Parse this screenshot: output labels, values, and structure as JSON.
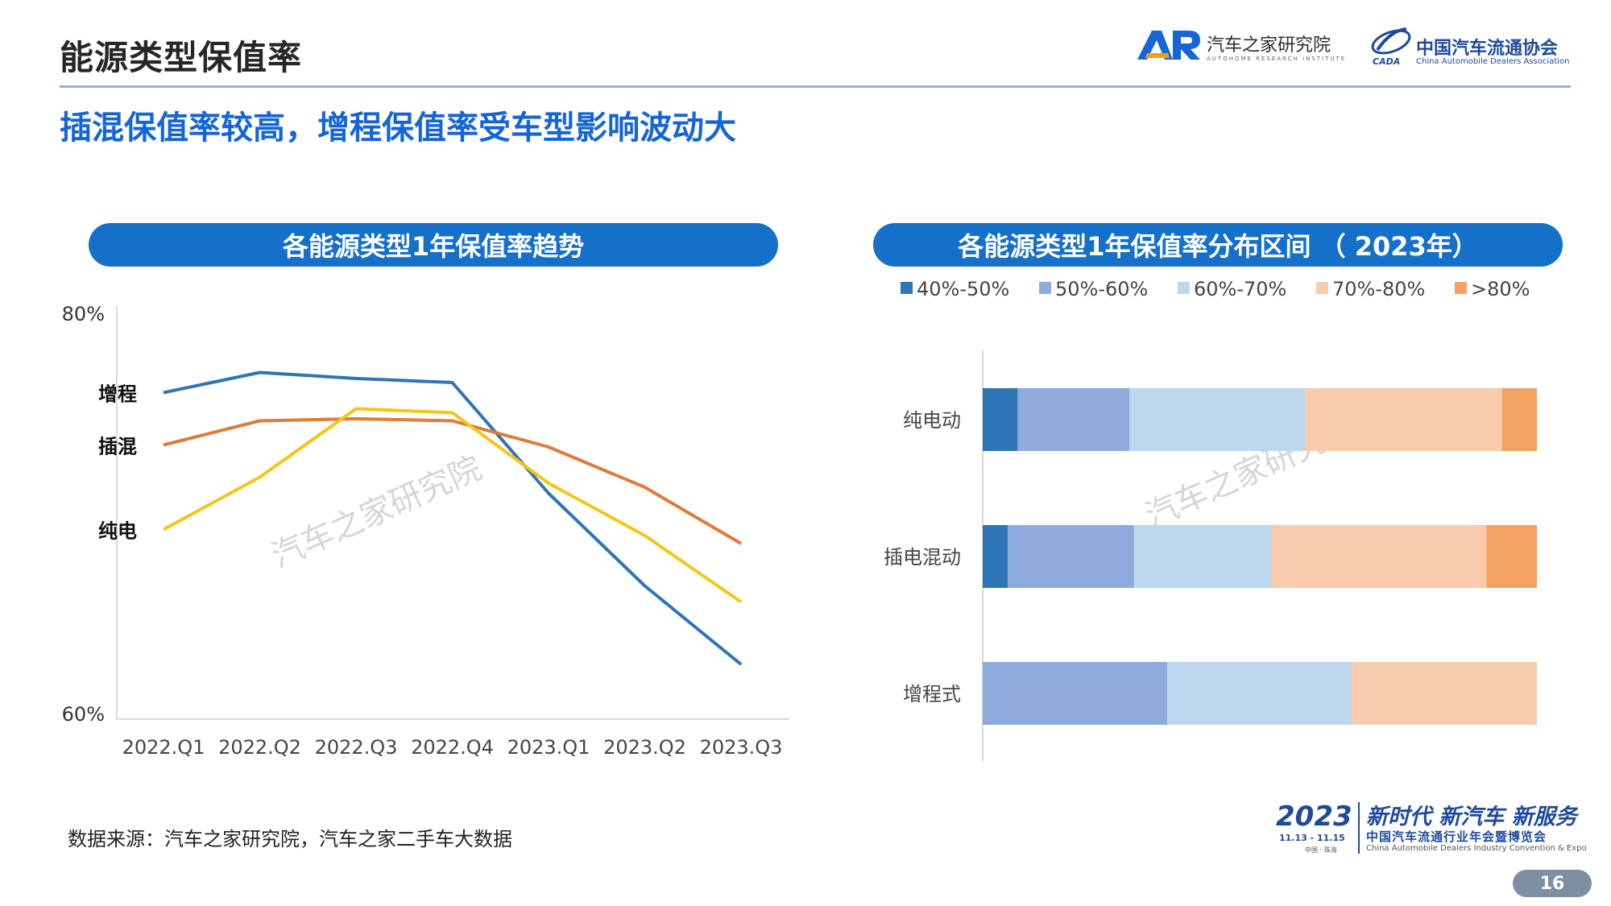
{
  "header": {
    "title": "能源类型保值率",
    "logo_ar_text": "汽车之家研究院",
    "logo_ar_en": "AUTOHOME RESEARCH INSTITUTE",
    "logo_cada_text": "中国汽车流通协会",
    "logo_cada_en": "China Automobile Dealers Association",
    "logo_cada_abbr": "CADA"
  },
  "subtitle": "插混保值率较高，增程保值率受车型影响波动大",
  "watermark": "汽车之家研究院",
  "source": "数据来源：汽车之家研究院，汽车之家二手车大数据",
  "footer": {
    "year": "2023",
    "dates": "11.13 - 11.15",
    "location": "中国 · 珠海",
    "slogan": "新时代 新汽车 新服务",
    "event_cn": "中国汽车流通行业年会暨博览会",
    "event_en": "China Automobile Dealers Industry Convention & Expo",
    "page_number": "16"
  },
  "colors": {
    "accent": "#1570c9",
    "title_blue": "#1565d8",
    "series_range_ext": "#2e75b6",
    "series_phev": "#e07b39",
    "series_bev": "#f5c518",
    "dist": [
      "#2e75b6",
      "#8faadc",
      "#bdd7ee",
      "#f8cbad",
      "#f4a261"
    ]
  },
  "chart_data": [
    {
      "type": "line",
      "title": "各能源类型1年保值率趋势",
      "categories": [
        "2022.Q1",
        "2022.Q2",
        "2022.Q3",
        "2022.Q4",
        "2023.Q1",
        "2023.Q2",
        "2023.Q3"
      ],
      "ylim": [
        60,
        80
      ],
      "ytick_labels": [
        "80%",
        "60%"
      ],
      "grid": false,
      "series": [
        {
          "name": "增程",
          "values": [
            75.9,
            76.9,
            76.6,
            76.4,
            70.9,
            66.3,
            62.4
          ]
        },
        {
          "name": "插混",
          "values": [
            73.3,
            74.5,
            74.6,
            74.5,
            73.2,
            71.2,
            68.4
          ]
        },
        {
          "name": "纯电",
          "values": [
            69.1,
            71.7,
            75.1,
            74.9,
            71.4,
            68.8,
            65.5
          ]
        }
      ]
    },
    {
      "type": "bar",
      "orientation": "horizontal",
      "stacked": true,
      "title": "各能源类型1年保值率分布区间 （ 2023年）",
      "categories": [
        "纯电动",
        "插电混动",
        "增程式"
      ],
      "legend_position": "top",
      "series": [
        {
          "name": "40%-50%",
          "values": [
            6.3,
            4.5,
            0
          ]
        },
        {
          "name": "50%-60%",
          "values": [
            20.2,
            22.8,
            33.3
          ]
        },
        {
          "name": "60%-70%",
          "values": [
            31.7,
            24.8,
            33.3
          ]
        },
        {
          "name": "70%-80%",
          "values": [
            35.5,
            38.8,
            33.4
          ]
        },
        {
          "name": ">80%",
          "values": [
            6.3,
            9.1,
            0
          ]
        }
      ]
    }
  ]
}
